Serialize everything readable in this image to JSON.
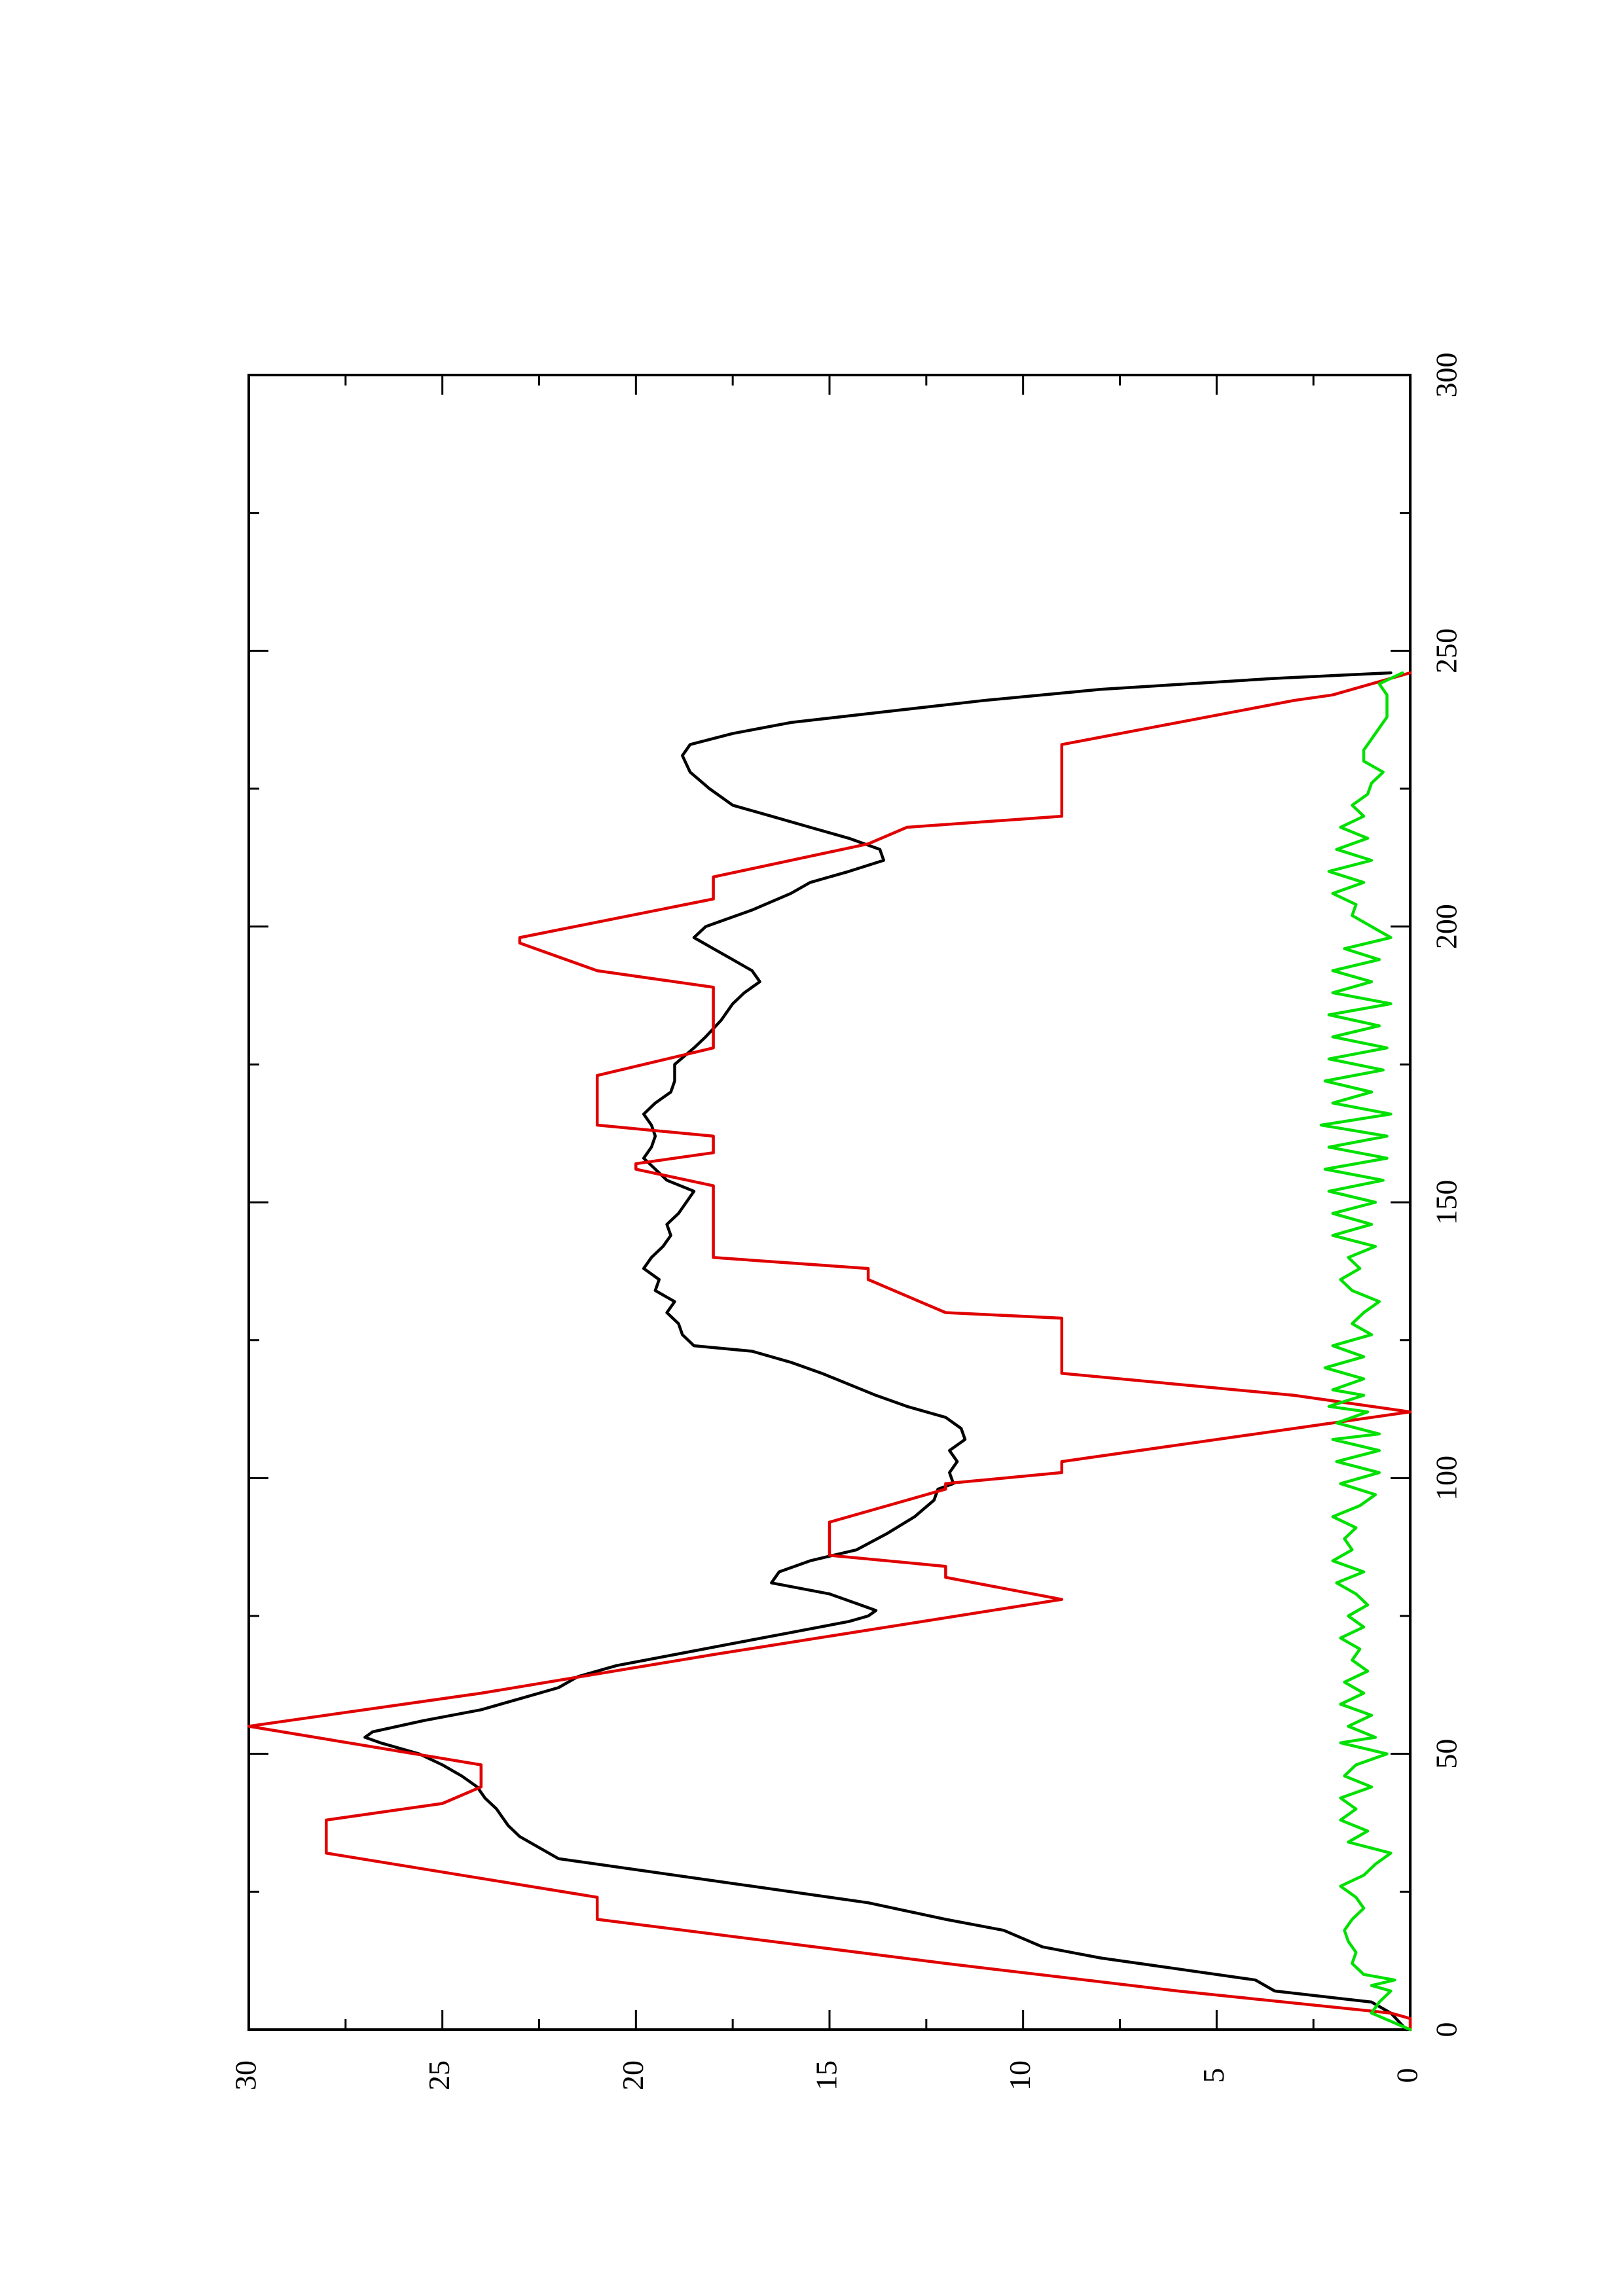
{
  "chart_data": {
    "type": "line",
    "orientation": "rotated-90-counterclockwise",
    "title": "",
    "xlabel": "",
    "ylabel": "",
    "xlim": [
      0,
      300
    ],
    "ylim": [
      0,
      30
    ],
    "x_ticks": [
      0,
      50,
      100,
      150,
      200,
      250,
      300
    ],
    "x_tick_labels": [
      "0",
      "50",
      "100",
      "150",
      "200",
      "250",
      "300"
    ],
    "y_ticks": [
      0,
      5,
      10,
      15,
      20,
      25,
      30
    ],
    "y_tick_labels": [
      "0",
      "5",
      "10",
      "15",
      "20",
      "25",
      "30"
    ],
    "grid": false,
    "legend": "none",
    "series": [
      {
        "color": "#000000",
        "style": "smooth",
        "points": [
          [
            0,
            0.1
          ],
          [
            3,
            0.5
          ],
          [
            5,
            1
          ],
          [
            7,
            3.5
          ],
          [
            9,
            4
          ],
          [
            11,
            6
          ],
          [
            13,
            8
          ],
          [
            15,
            9.5
          ],
          [
            18,
            10.5
          ],
          [
            20,
            12
          ],
          [
            23,
            14
          ],
          [
            25,
            16
          ],
          [
            27,
            18
          ],
          [
            29,
            20
          ],
          [
            31,
            22
          ],
          [
            33,
            22.5
          ],
          [
            35,
            23
          ],
          [
            37,
            23.3
          ],
          [
            39,
            23.5
          ],
          [
            40,
            23.6
          ],
          [
            42,
            23.9
          ],
          [
            44,
            24.1
          ],
          [
            46,
            24.5
          ],
          [
            48,
            25
          ],
          [
            50,
            25.6
          ],
          [
            52,
            26.6
          ],
          [
            53,
            27
          ],
          [
            54,
            26.8
          ],
          [
            56,
            25.5
          ],
          [
            58,
            24
          ],
          [
            60,
            23
          ],
          [
            62,
            22
          ],
          [
            64,
            21.5
          ],
          [
            66,
            20.5
          ],
          [
            68,
            19
          ],
          [
            70,
            17.5
          ],
          [
            72,
            16
          ],
          [
            74,
            14.5
          ],
          [
            75,
            14
          ],
          [
            76,
            13.8
          ],
          [
            77,
            14.2
          ],
          [
            79,
            15
          ],
          [
            81,
            16.5
          ],
          [
            83,
            16.3
          ],
          [
            85,
            15.5
          ],
          [
            87,
            14.3
          ],
          [
            90,
            13.5
          ],
          [
            93,
            12.8
          ],
          [
            96,
            12.3
          ],
          [
            98,
            12.2
          ],
          [
            99,
            11.8
          ],
          [
            101,
            11.9
          ],
          [
            103,
            11.7
          ],
          [
            105,
            11.9
          ],
          [
            107,
            11.5
          ],
          [
            109,
            11.6
          ],
          [
            111,
            12
          ],
          [
            113,
            13
          ],
          [
            115,
            13.8
          ],
          [
            117,
            14.5
          ],
          [
            119,
            15.2
          ],
          [
            121,
            16
          ],
          [
            123,
            17
          ],
          [
            124,
            18.5
          ],
          [
            126,
            18.8
          ],
          [
            128,
            18.9
          ],
          [
            130,
            19.2
          ],
          [
            132,
            19
          ],
          [
            134,
            19.5
          ],
          [
            136,
            19.4
          ],
          [
            138,
            19.8
          ],
          [
            140,
            19.6
          ],
          [
            142,
            19.3
          ],
          [
            144,
            19.1
          ],
          [
            146,
            19.2
          ],
          [
            148,
            18.9
          ],
          [
            150,
            18.7
          ],
          [
            152,
            18.5
          ],
          [
            154,
            19.2
          ],
          [
            156,
            19.5
          ],
          [
            158,
            19.8
          ],
          [
            160,
            19.6
          ],
          [
            162,
            19.5
          ],
          [
            164,
            19.6
          ],
          [
            166,
            19.8
          ],
          [
            168,
            19.5
          ],
          [
            170,
            19.1
          ],
          [
            172,
            19
          ],
          [
            175,
            19
          ],
          [
            178,
            18.5
          ],
          [
            180,
            18.2
          ],
          [
            183,
            17.8
          ],
          [
            186,
            17.5
          ],
          [
            188,
            17.2
          ],
          [
            190,
            16.8
          ],
          [
            192,
            17
          ],
          [
            194,
            17.5
          ],
          [
            196,
            18
          ],
          [
            198,
            18.5
          ],
          [
            200,
            18.2
          ],
          [
            203,
            17
          ],
          [
            206,
            16
          ],
          [
            208,
            15.5
          ],
          [
            210,
            14.5
          ],
          [
            212,
            13.6
          ],
          [
            214,
            13.7
          ],
          [
            216,
            14.5
          ],
          [
            218,
            15.5
          ],
          [
            220,
            16.5
          ],
          [
            222,
            17.5
          ],
          [
            225,
            18.1
          ],
          [
            228,
            18.6
          ],
          [
            231,
            18.8
          ],
          [
            233,
            18.6
          ],
          [
            235,
            17.5
          ],
          [
            237,
            16
          ],
          [
            239,
            13.5
          ],
          [
            241,
            11
          ],
          [
            243,
            8
          ],
          [
            245,
            3.5
          ],
          [
            246,
            0.5
          ]
        ]
      },
      {
        "color": "#e00000",
        "style": "linear",
        "points": [
          [
            0,
            0
          ],
          [
            2,
            0
          ],
          [
            3,
            0.5
          ],
          [
            7,
            6
          ],
          [
            7,
            6
          ],
          [
            12,
            12
          ],
          [
            20,
            21
          ],
          [
            24,
            21
          ],
          [
            24,
            21
          ],
          [
            32,
            28
          ],
          [
            38,
            28
          ],
          [
            41,
            25
          ],
          [
            44,
            24
          ],
          [
            46,
            24
          ],
          [
            48,
            24
          ],
          [
            55,
            30
          ],
          [
            61,
            24
          ],
          [
            68,
            18
          ],
          [
            78,
            9
          ],
          [
            82,
            12
          ],
          [
            84,
            12
          ],
          [
            86,
            15
          ],
          [
            92,
            15
          ],
          [
            98,
            12
          ],
          [
            99,
            12
          ],
          [
            101,
            9
          ],
          [
            103,
            9
          ],
          [
            106,
            6
          ],
          [
            112,
            0
          ],
          [
            115,
            3
          ],
          [
            117,
            6
          ],
          [
            119,
            9
          ],
          [
            124,
            9
          ],
          [
            129,
            9
          ],
          [
            130,
            12
          ],
          [
            136,
            14
          ],
          [
            138,
            14
          ],
          [
            140,
            18
          ],
          [
            153,
            18
          ],
          [
            156,
            20
          ],
          [
            157,
            20
          ],
          [
            159,
            18
          ],
          [
            162,
            18
          ],
          [
            164,
            21
          ],
          [
            173,
            21
          ],
          [
            178,
            18
          ],
          [
            189,
            18
          ],
          [
            192,
            21
          ],
          [
            197,
            23
          ],
          [
            198,
            23
          ],
          [
            205,
            18
          ],
          [
            209,
            18
          ],
          [
            215,
            14
          ],
          [
            218,
            13
          ],
          [
            220,
            9
          ],
          [
            233,
            9
          ],
          [
            237,
            6
          ],
          [
            241,
            3
          ],
          [
            242,
            2
          ],
          [
            246,
            0
          ]
        ]
      },
      {
        "color": "#00e000",
        "style": "linear",
        "points": [
          [
            0,
            0
          ],
          [
            3,
            1
          ],
          [
            5,
            0.8
          ],
          [
            7,
            0.5
          ],
          [
            8,
            1
          ],
          [
            9,
            0.4
          ],
          [
            10,
            1.2
          ],
          [
            12,
            1.5
          ],
          [
            14,
            1.4
          ],
          [
            16,
            1.6
          ],
          [
            18,
            1.7
          ],
          [
            20,
            1.5
          ],
          [
            22,
            1.2
          ],
          [
            24,
            1.4
          ],
          [
            26,
            1.8
          ],
          [
            28,
            1.2
          ],
          [
            30,
            0.9
          ],
          [
            32,
            0.5
          ],
          [
            34,
            1.6
          ],
          [
            36,
            1.1
          ],
          [
            38,
            1.8
          ],
          [
            40,
            1.4
          ],
          [
            42,
            1.8
          ],
          [
            44,
            1.0
          ],
          [
            46,
            1.7
          ],
          [
            48,
            1.4
          ],
          [
            50,
            0.6
          ],
          [
            52,
            1.8
          ],
          [
            53,
            0.9
          ],
          [
            55,
            1.6
          ],
          [
            57,
            1.0
          ],
          [
            59,
            1.8
          ],
          [
            61,
            1.2
          ],
          [
            63,
            1.7
          ],
          [
            65,
            1.1
          ],
          [
            67,
            1.5
          ],
          [
            69,
            1.3
          ],
          [
            71,
            1.8
          ],
          [
            73,
            1.2
          ],
          [
            75,
            1.6
          ],
          [
            77,
            1.1
          ],
          [
            79,
            1.4
          ],
          [
            81,
            1.9
          ],
          [
            83,
            1.2
          ],
          [
            85,
            2.0
          ],
          [
            87,
            1.5
          ],
          [
            89,
            1.7
          ],
          [
            91,
            1.4
          ],
          [
            93,
            2.0
          ],
          [
            95,
            1.3
          ],
          [
            97,
            0.9
          ],
          [
            99,
            1.8
          ],
          [
            101,
            0.8
          ],
          [
            103,
            1.9
          ],
          [
            105,
            0.8
          ],
          [
            107,
            2.0
          ],
          [
            108,
            0.8
          ],
          [
            110,
            1.9
          ],
          [
            112,
            1.1
          ],
          [
            113,
            2.1
          ],
          [
            115,
            1.2
          ],
          [
            116,
            2.0
          ],
          [
            118,
            1.2
          ],
          [
            120,
            2.2
          ],
          [
            122,
            1.2
          ],
          [
            124,
            2.0
          ],
          [
            126,
            1.0
          ],
          [
            128,
            1.5
          ],
          [
            130,
            1.2
          ],
          [
            132,
            0.8
          ],
          [
            134,
            1.5
          ],
          [
            136,
            1.8
          ],
          [
            138,
            1.3
          ],
          [
            140,
            1.6
          ],
          [
            142,
            0.9
          ],
          [
            144,
            2.0
          ],
          [
            146,
            1.0
          ],
          [
            148,
            2.0
          ],
          [
            150,
            0.9
          ],
          [
            152,
            2.1
          ],
          [
            154,
            0.7
          ],
          [
            156,
            2.2
          ],
          [
            158,
            0.6
          ],
          [
            160,
            2.1
          ],
          [
            162,
            0.6
          ],
          [
            164,
            2.3
          ],
          [
            166,
            0.5
          ],
          [
            168,
            2.0
          ],
          [
            170,
            1.0
          ],
          [
            172,
            2.2
          ],
          [
            174,
            0.7
          ],
          [
            176,
            2.1
          ],
          [
            178,
            0.6
          ],
          [
            180,
            2.0
          ],
          [
            182,
            0.8
          ],
          [
            184,
            2.1
          ],
          [
            186,
            0.5
          ],
          [
            188,
            2.0
          ],
          [
            190,
            1.0
          ],
          [
            192,
            2.0
          ],
          [
            194,
            0.8
          ],
          [
            196,
            1.7
          ],
          [
            198,
            0.5
          ],
          [
            200,
            1.0
          ],
          [
            202,
            1.5
          ],
          [
            204,
            1.4
          ],
          [
            206,
            2.0
          ],
          [
            208,
            1.2
          ],
          [
            210,
            2.1
          ],
          [
            212,
            1.0
          ],
          [
            214,
            1.9
          ],
          [
            216,
            1.1
          ],
          [
            218,
            1.8
          ],
          [
            220,
            1.2
          ],
          [
            222,
            1.5
          ],
          [
            224,
            1.1
          ],
          [
            226,
            1.0
          ],
          [
            228,
            0.7
          ],
          [
            230,
            1.2
          ],
          [
            232,
            1.2
          ],
          [
            234,
            1.0
          ],
          [
            236,
            0.8
          ],
          [
            238,
            0.6
          ],
          [
            240,
            0.6
          ],
          [
            242,
            0.6
          ],
          [
            244,
            0.8
          ],
          [
            246,
            0.2
          ]
        ]
      }
    ]
  }
}
